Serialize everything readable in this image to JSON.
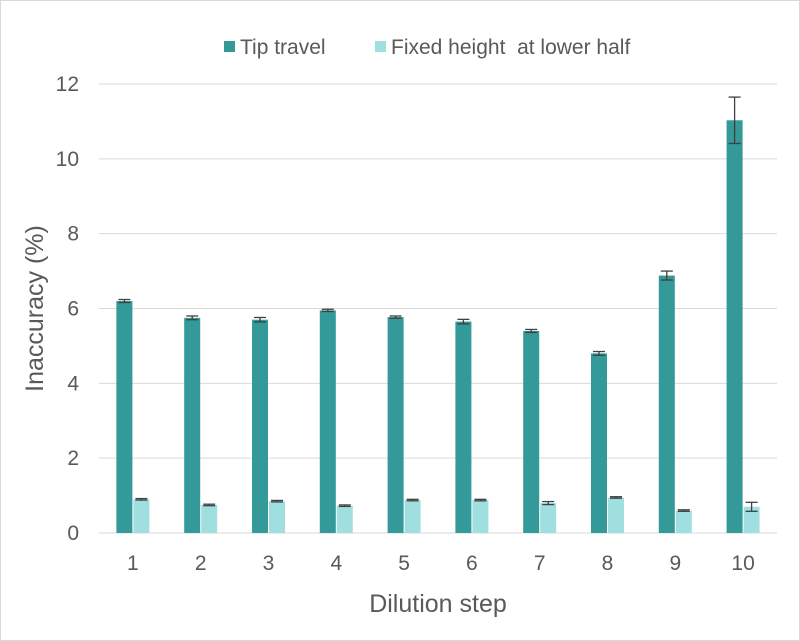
{
  "chart_data": {
    "type": "bar",
    "title": "",
    "xlabel": "Dilution step",
    "ylabel": "Inaccuracy (%)",
    "ylim": [
      0,
      12
    ],
    "yticks": [
      0,
      2,
      4,
      6,
      8,
      10,
      12
    ],
    "grid": true,
    "legend_position": "top",
    "categories": [
      "1",
      "2",
      "3",
      "4",
      "5",
      "6",
      "7",
      "8",
      "9",
      "10"
    ],
    "series": [
      {
        "name": "Tip travel",
        "color": "#339999",
        "values": [
          6.2,
          5.75,
          5.7,
          5.95,
          5.77,
          5.65,
          5.4,
          4.8,
          6.88,
          11.03
        ],
        "errors": [
          0.04,
          0.05,
          0.06,
          0.03,
          0.03,
          0.06,
          0.04,
          0.05,
          0.12,
          0.62
        ]
      },
      {
        "name": "Fixed height  at lower half",
        "color": "#a0dfe0",
        "values": [
          0.9,
          0.75,
          0.85,
          0.73,
          0.88,
          0.88,
          0.8,
          0.95,
          0.6,
          0.7
        ],
        "errors": [
          0.02,
          0.02,
          0.02,
          0.02,
          0.02,
          0.02,
          0.04,
          0.02,
          0.02,
          0.12
        ]
      }
    ]
  }
}
